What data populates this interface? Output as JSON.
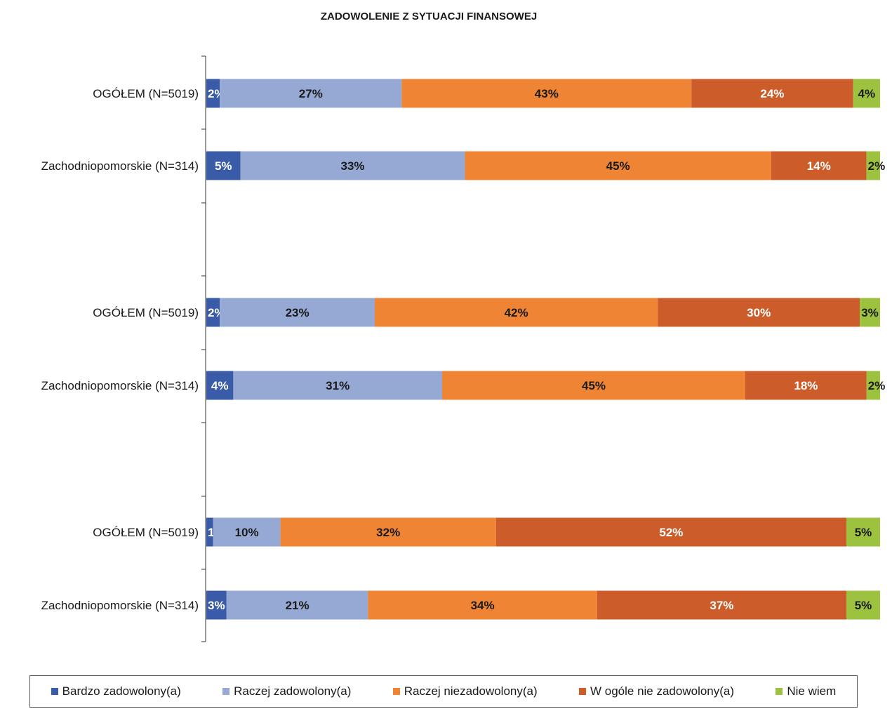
{
  "chart_data": {
    "type": "bar",
    "orientation": "horizontal",
    "stacked": true,
    "normalized_percent": true,
    "title": "ZADOWOLENIE Z SYTUACJI FINANSOWEJ",
    "grid": false,
    "legend_position": "bottom",
    "categories": [
      "OGÓŁEM (N=5019)",
      "Zachodniopomorskie (N=314)",
      "OGÓŁEM (N=5019)",
      "Zachodniopomorskie (N=314)",
      "OGÓŁEM (N=5019)",
      "Zachodniopomorskie (N=314)"
    ],
    "groups": [
      [
        0,
        1
      ],
      [
        2,
        3
      ],
      [
        4,
        5
      ]
    ],
    "series": [
      {
        "name": "Bardzo zadowolony(a)",
        "color": "#3A5BA8",
        "label_color": "#ffffff",
        "values": [
          2,
          5,
          2,
          4,
          1,
          3
        ],
        "labels": [
          "2%",
          "5%",
          "2%",
          "4%",
          "1%",
          "3%"
        ]
      },
      {
        "name": "Raczej zadowolony(a)",
        "color": "#95A9D4",
        "label_color": "#1a1a1a",
        "values": [
          27,
          33,
          23,
          31,
          10,
          21
        ],
        "labels": [
          "27%",
          "33%",
          "23%",
          "31%",
          "10%",
          "21%"
        ]
      },
      {
        "name": "Raczej niezadowolony(a)",
        "color": "#EE8434",
        "label_color": "#1a1a1a",
        "values": [
          43,
          45,
          42,
          45,
          32,
          34
        ],
        "labels": [
          "43%",
          "45%",
          "42%",
          "45%",
          "32%",
          "34%"
        ]
      },
      {
        "name": "W ogóle nie zadowolony(a)",
        "color": "#CC5D2A",
        "label_color": "#ffffff",
        "values": [
          24,
          14,
          30,
          18,
          52,
          37
        ],
        "labels": [
          "24%",
          "14%",
          "30%",
          "18%",
          "52%",
          "37%"
        ]
      },
      {
        "name": "Nie wiem",
        "color": "#9DC23F",
        "label_color": "#1a1a1a",
        "values": [
          4,
          2,
          3,
          2,
          5,
          5
        ],
        "labels": [
          "4%",
          "2%",
          "3%",
          "2%",
          "5%",
          "5%"
        ]
      }
    ]
  }
}
